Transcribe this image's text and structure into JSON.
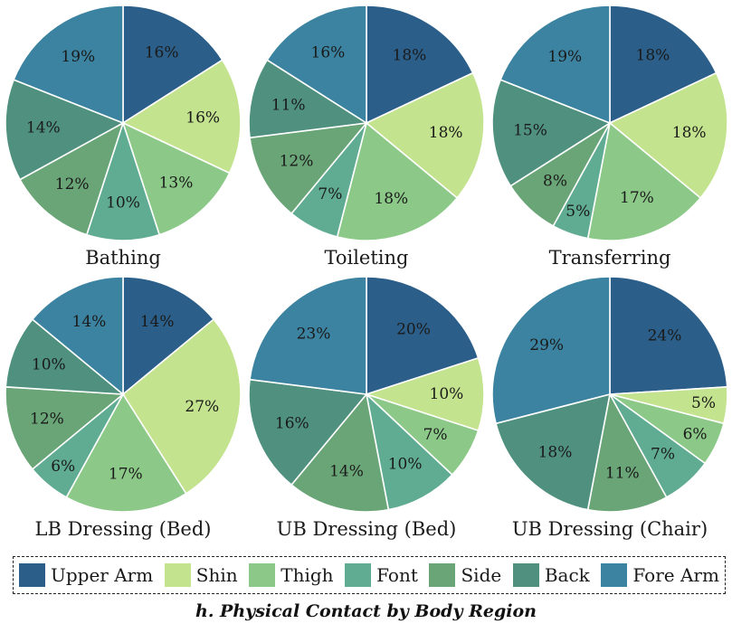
{
  "chart_data": {
    "type": "pie",
    "categories": [
      "Upper Arm",
      "Shin",
      "Thigh",
      "Font",
      "Side",
      "Back",
      "Fore Arm"
    ],
    "colors": [
      "#2b5f89",
      "#c3e38e",
      "#8cc988",
      "#5fac92",
      "#6aa577",
      "#4f917e",
      "#3b83a0"
    ],
    "charts": [
      {
        "title": "Bathing",
        "values": [
          16,
          16,
          13,
          10,
          12,
          14,
          19
        ]
      },
      {
        "title": "Toileting",
        "values": [
          18,
          18,
          18,
          7,
          12,
          11,
          16
        ]
      },
      {
        "title": "Transferring",
        "values": [
          18,
          18,
          17,
          5,
          8,
          15,
          19
        ]
      },
      {
        "title": "LB Dressing (Bed)",
        "values": [
          14,
          27,
          17,
          6,
          12,
          10,
          14
        ]
      },
      {
        "title": "UB Dressing (Bed)",
        "values": [
          20,
          10,
          7,
          10,
          14,
          16,
          23
        ]
      },
      {
        "title": "UB Dressing (Chair)",
        "values": [
          24,
          5,
          6,
          7,
          11,
          18,
          29
        ]
      }
    ]
  },
  "caption": "h. Physical Contact by Body Region"
}
